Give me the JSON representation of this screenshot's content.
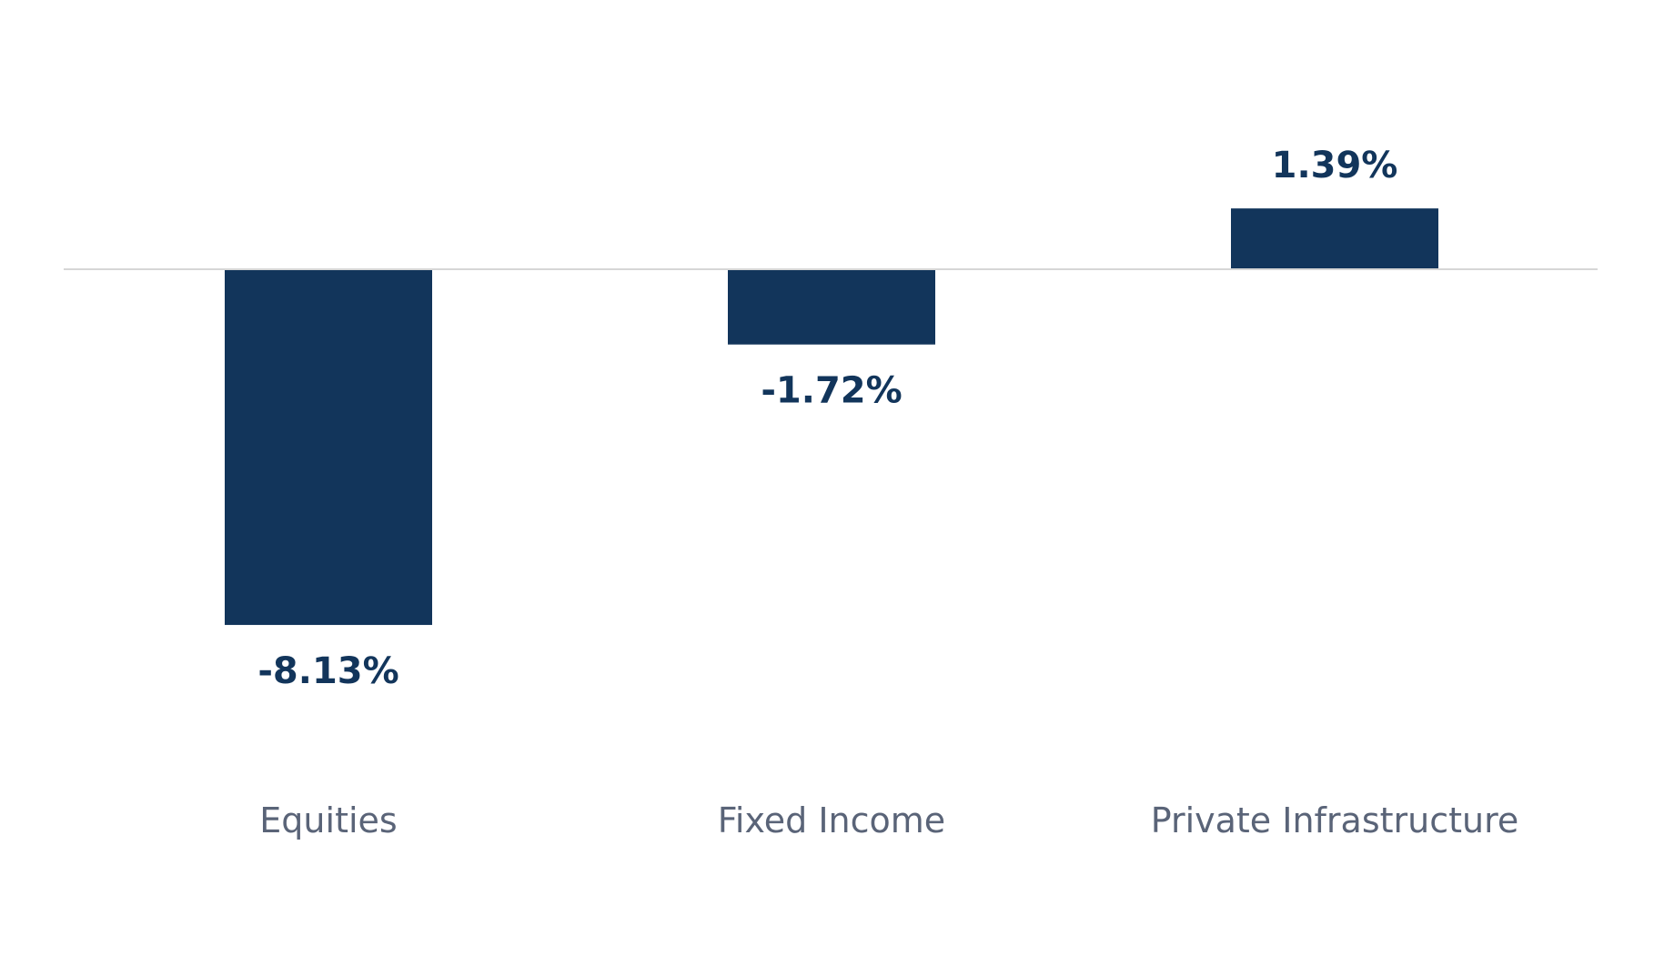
{
  "chart_data": {
    "type": "bar",
    "categories": [
      "Equities",
      "Fixed Income",
      "Private Infrastructure"
    ],
    "values": [
      -8.13,
      -1.72,
      1.39
    ],
    "value_labels": [
      "-8.13%",
      "-1.72%",
      "1.39%"
    ],
    "ylim": [
      -10,
      4
    ],
    "grid": false,
    "legend": "none",
    "colors": {
      "bar": "#12355b",
      "zero_line": "#d6d6d6",
      "category_text": "#5a6478",
      "value_text": "#12355b"
    }
  }
}
